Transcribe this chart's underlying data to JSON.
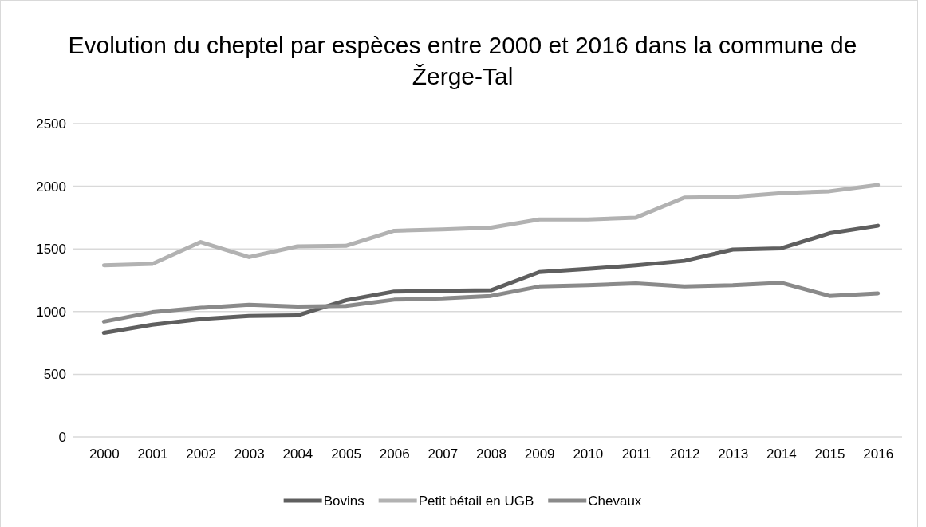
{
  "chart_data": {
    "type": "line",
    "title": "Evolution du cheptel par espèces entre 2000 et 2016 dans la commune de Žerge-Tal",
    "categories": [
      "2000",
      "2001",
      "2002",
      "2003",
      "2004",
      "2005",
      "2006",
      "2007",
      "2008",
      "2009",
      "2010",
      "2011",
      "2012",
      "2013",
      "2014",
      "2015",
      "2016"
    ],
    "series": [
      {
        "name": "Bovins",
        "color": "#5f5f5f",
        "values": [
          830,
          895,
          940,
          965,
          970,
          1090,
          1160,
          1165,
          1170,
          1315,
          1340,
          1370,
          1405,
          1495,
          1505,
          1625,
          1685
        ]
      },
      {
        "name": "Petit bétail en UGB",
        "color": "#b2b2b2",
        "values": [
          1370,
          1380,
          1555,
          1435,
          1520,
          1525,
          1645,
          1655,
          1670,
          1735,
          1735,
          1750,
          1910,
          1915,
          1945,
          1960,
          2010
        ]
      },
      {
        "name": "Chevaux",
        "color": "#8a8a8a",
        "values": [
          920,
          995,
          1030,
          1055,
          1040,
          1045,
          1095,
          1105,
          1125,
          1200,
          1210,
          1225,
          1200,
          1210,
          1230,
          1125,
          1145
        ]
      }
    ],
    "ylim": [
      0,
      2500
    ],
    "yticks": [
      0,
      500,
      1000,
      1500,
      2000,
      2500
    ],
    "grid": "y",
    "legend": "bottom",
    "marker": "none",
    "line_style": "solid"
  }
}
